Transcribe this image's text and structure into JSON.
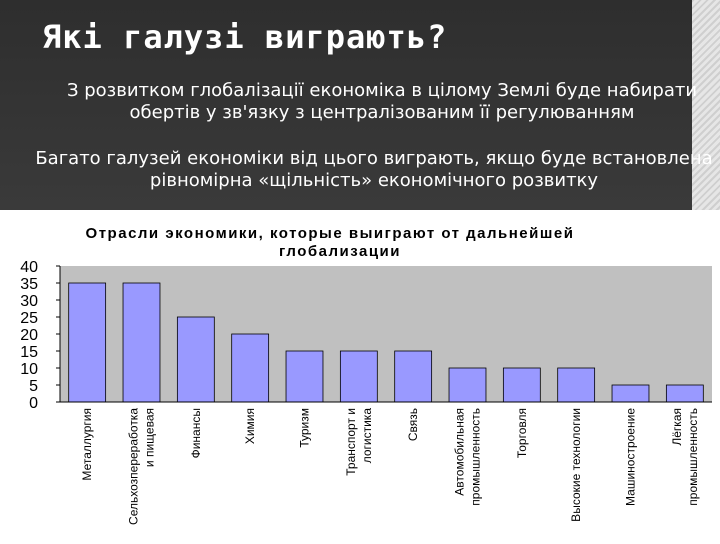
{
  "slide": {
    "title": "Які галузі виграють?",
    "paragraph1": "З розвитком глобалізації економіка в цілому Землі буде набирати обертів у зв'язку з централізованим її регулюванням",
    "paragraph2": "Багато галузей економіки від цього виграють, якщо буде встановлена рівномірна «щільність» економічного розвитку"
  },
  "colors": {
    "header_bg": "#333333",
    "bar_fill": "#9999ff",
    "bar_stroke": "#000000",
    "plot_bg": "#c0c0c0"
  },
  "chart_data": {
    "type": "bar",
    "title_lines": [
      "Отрасли экономики, которые выиграют от дальнейшей",
      "глобализации"
    ],
    "categories": [
      [
        "Металлургия"
      ],
      [
        "Сельхозпереработка",
        "и пищевая"
      ],
      [
        "Финансы"
      ],
      [
        "Химия"
      ],
      [
        "Туризм"
      ],
      [
        "Транспорт и",
        "логистика"
      ],
      [
        "Связь"
      ],
      [
        "Автомобильная",
        "промышленность"
      ],
      [
        "Торговля"
      ],
      [
        "Высокие технологии"
      ],
      [
        "Машиностроение"
      ],
      [
        "Лёгкая",
        "промышленность"
      ]
    ],
    "values": [
      35,
      35,
      25,
      20,
      15,
      15,
      15,
      10,
      10,
      10,
      5,
      5
    ],
    "ylim": [
      0,
      40
    ],
    "yticks": [
      "0",
      "5",
      "10",
      "15",
      "20",
      "25",
      "30",
      "35",
      "40"
    ],
    "grid": false
  }
}
